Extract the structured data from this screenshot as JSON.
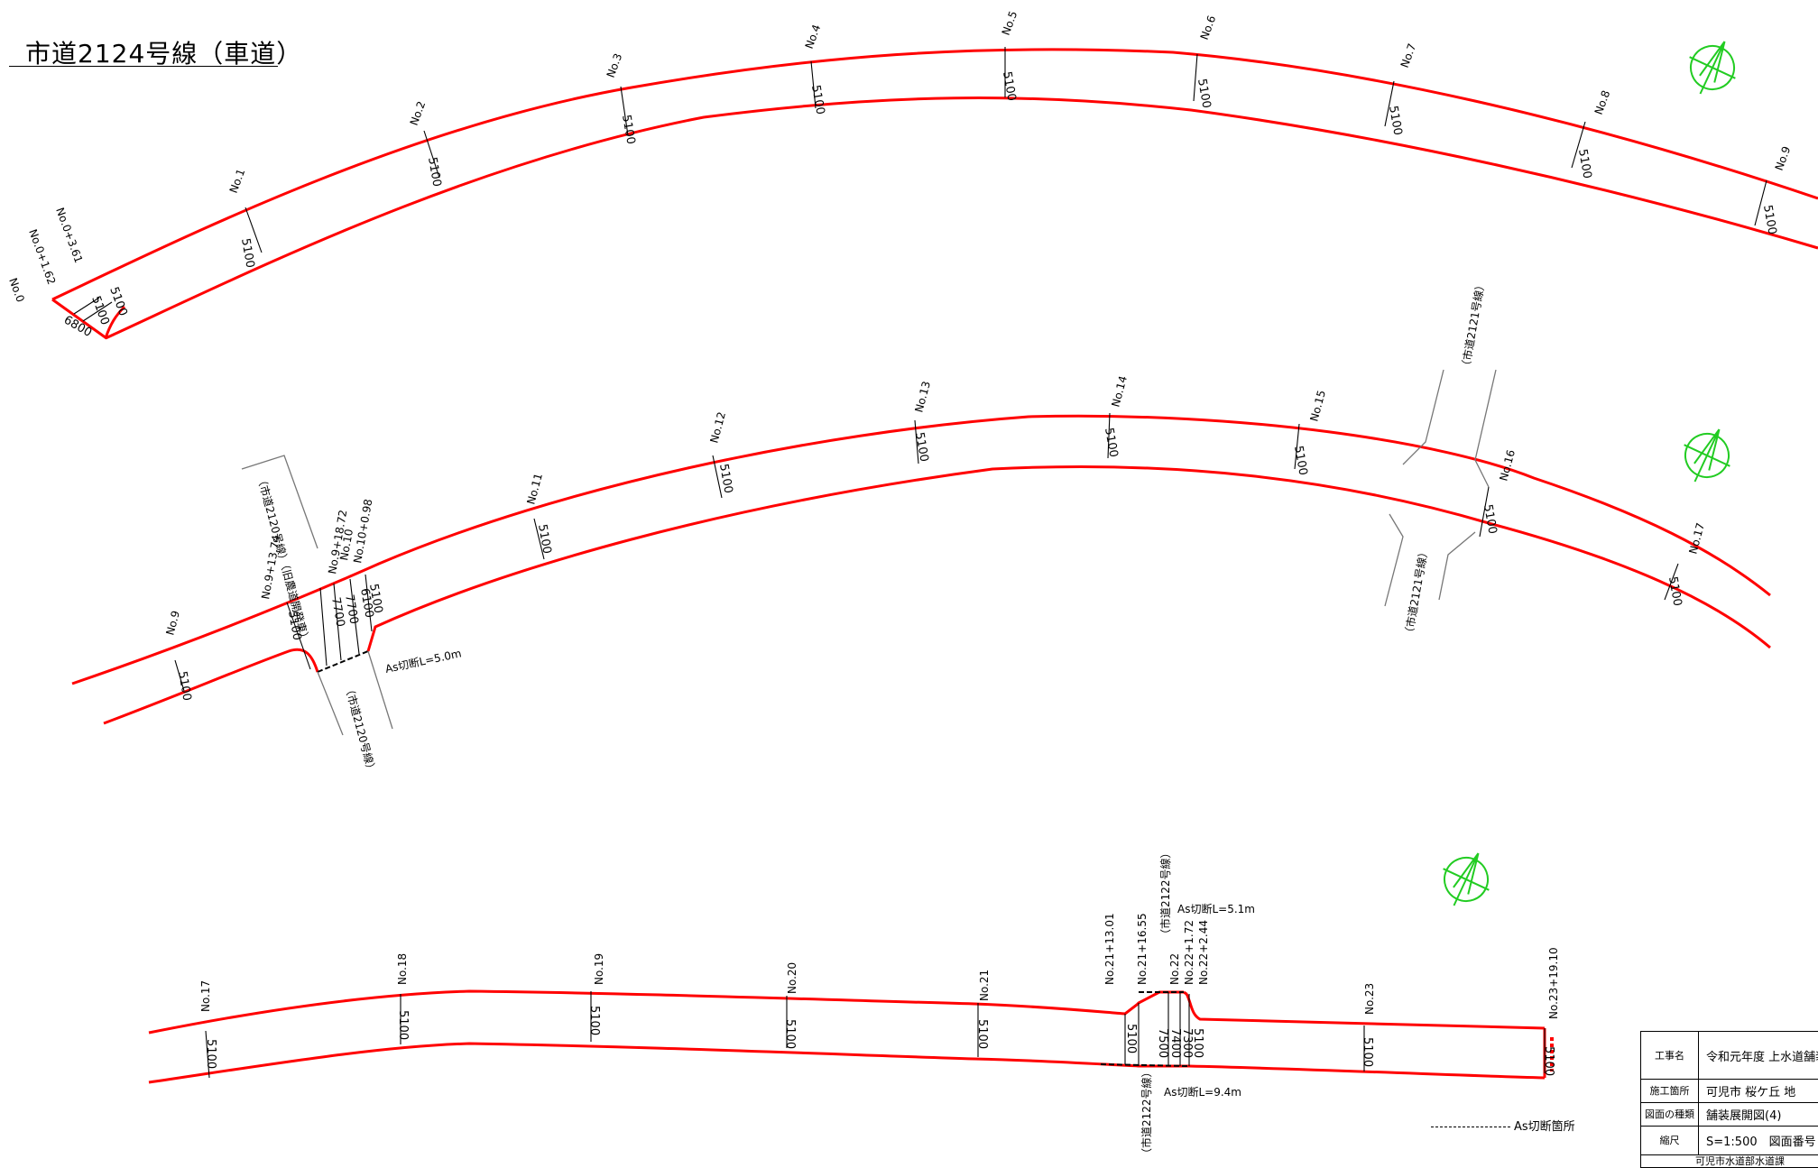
{
  "title": "市道2124号線（車道）",
  "colors": {
    "road": "#ff0000",
    "north_arrow": "#22cc22",
    "ink": "#000000",
    "side_road": "#777777"
  },
  "icons": {
    "north_arrow": "north-arrow-icon"
  },
  "default_width": "5100",
  "strip1": {
    "stations": [
      "No.1",
      "No.2",
      "No.3",
      "No.4",
      "No.5",
      "No.6",
      "No.7",
      "No.8",
      "No.9"
    ],
    "start_labels": [
      "No.0",
      "No.0+1.62",
      "No.0+3.61"
    ],
    "start_widths": [
      "6800",
      "5100",
      "5100"
    ]
  },
  "strip2": {
    "stations": [
      "No.9",
      "No.11",
      "No.12",
      "No.13",
      "No.14",
      "No.15",
      "No.16",
      "No.17"
    ],
    "junction_labels": [
      "No.9+13.74",
      "No.9+18.72",
      "No.10",
      "No.10+0.98"
    ],
    "junction_widths": [
      "5100",
      "7700",
      "7700",
      "6100",
      "5100"
    ],
    "side_roads": [
      "（市道2120号線）（旧農道開発車）",
      "（市道2120号線）",
      "（市道2121号線）",
      "（市道2121号線）"
    ],
    "cut_note": "As切断L=5.0m"
  },
  "strip3": {
    "stations": [
      "No.17",
      "No.18",
      "No.19",
      "No.20",
      "No.21",
      "No.23",
      "No.23+19.10"
    ],
    "junction_labels": [
      "No.21+13.01",
      "No.21+16.55",
      "No.22",
      "No.22+1.72",
      "No.22+2.44"
    ],
    "junction_widths": [
      "5100",
      "7500",
      "7400",
      "7300",
      "5100"
    ],
    "side_roads": [
      "（市道2122号線）",
      "（市道2122号線）"
    ],
    "cut_note_top": "As切断L=5.1m",
    "cut_note_bottom": "As切断L=9.4m"
  },
  "legend": "As切断箇所",
  "title_block": {
    "rows": [
      {
        "key": "工事名",
        "value": "令和元年度 上水道舗装復旧その"
      },
      {
        "key": "施工箇所",
        "value": "可児市 桜ケ丘 地"
      },
      {
        "key": "図面の種類",
        "value": "舗装展開図(4)"
      },
      {
        "key": "縮尺",
        "value": "S=1:500　図面番号"
      },
      {
        "key": "",
        "value": "可児市水道部水道課"
      }
    ]
  }
}
